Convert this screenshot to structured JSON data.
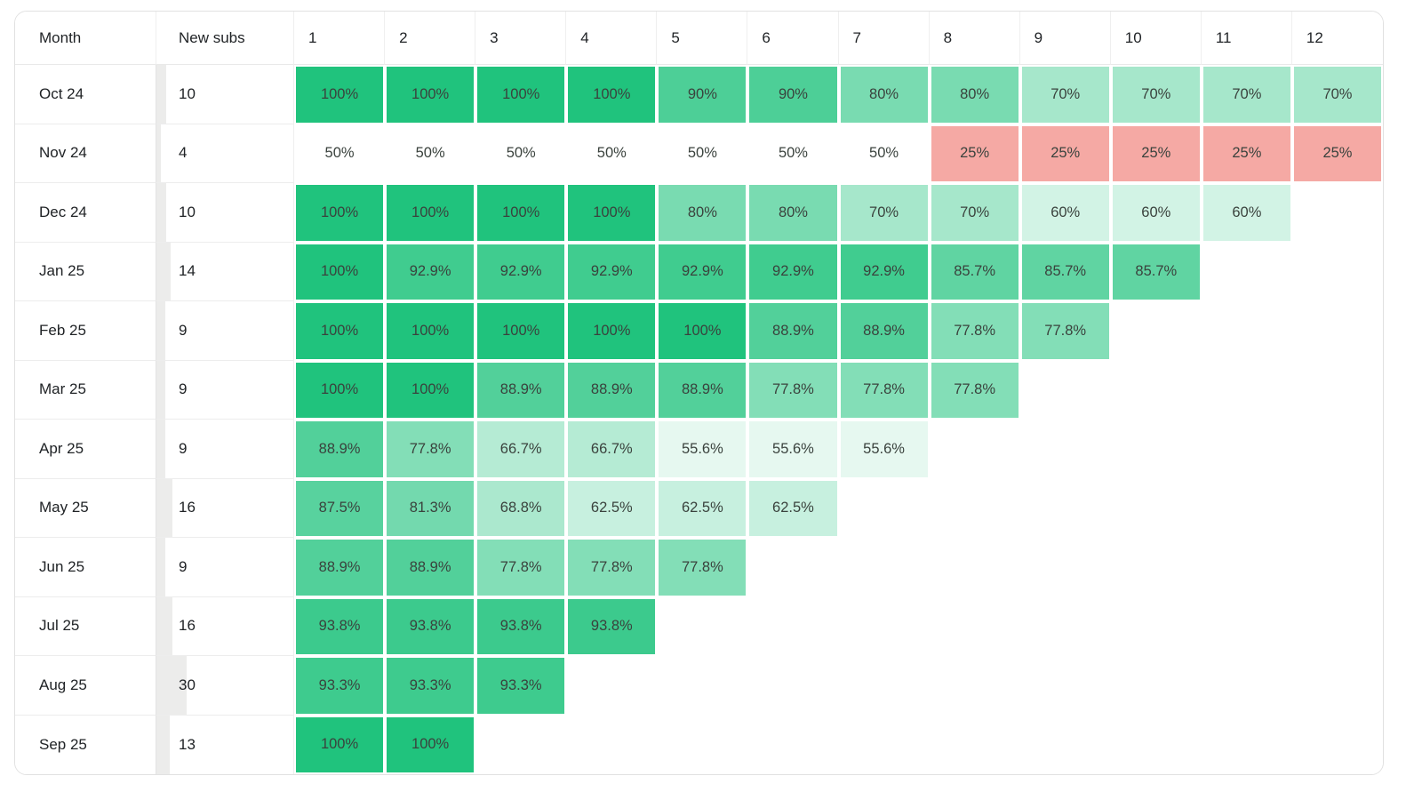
{
  "chart_data": {
    "type": "heatmap",
    "columns": [
      "Month",
      "New subs",
      "1",
      "2",
      "3",
      "4",
      "5",
      "6",
      "7",
      "8",
      "9",
      "10",
      "11",
      "12"
    ],
    "rows": [
      {
        "month": "Oct 24",
        "new_subs": 10,
        "retention": [
          "100%",
          "100%",
          "100%",
          "100%",
          "90%",
          "90%",
          "80%",
          "80%",
          "70%",
          "70%",
          "70%",
          "70%"
        ]
      },
      {
        "month": "Nov 24",
        "new_subs": 4,
        "retention": [
          "50%",
          "50%",
          "50%",
          "50%",
          "50%",
          "50%",
          "50%",
          "25%",
          "25%",
          "25%",
          "25%",
          "25%"
        ]
      },
      {
        "month": "Dec 24",
        "new_subs": 10,
        "retention": [
          "100%",
          "100%",
          "100%",
          "100%",
          "80%",
          "80%",
          "70%",
          "70%",
          "60%",
          "60%",
          "60%"
        ]
      },
      {
        "month": "Jan 25",
        "new_subs": 14,
        "retention": [
          "100%",
          "92.9%",
          "92.9%",
          "92.9%",
          "92.9%",
          "92.9%",
          "92.9%",
          "85.7%",
          "85.7%",
          "85.7%"
        ]
      },
      {
        "month": "Feb 25",
        "new_subs": 9,
        "retention": [
          "100%",
          "100%",
          "100%",
          "100%",
          "100%",
          "88.9%",
          "88.9%",
          "77.8%",
          "77.8%"
        ]
      },
      {
        "month": "Mar 25",
        "new_subs": 9,
        "retention": [
          "100%",
          "100%",
          "88.9%",
          "88.9%",
          "88.9%",
          "77.8%",
          "77.8%",
          "77.8%"
        ]
      },
      {
        "month": "Apr 25",
        "new_subs": 9,
        "retention": [
          "88.9%",
          "77.8%",
          "66.7%",
          "66.7%",
          "55.6%",
          "55.6%",
          "55.6%"
        ]
      },
      {
        "month": "May 25",
        "new_subs": 16,
        "retention": [
          "87.5%",
          "81.3%",
          "68.8%",
          "62.5%",
          "62.5%",
          "62.5%"
        ]
      },
      {
        "month": "Jun 25",
        "new_subs": 9,
        "retention": [
          "88.9%",
          "88.9%",
          "77.8%",
          "77.8%",
          "77.8%"
        ]
      },
      {
        "month": "Jul 25",
        "new_subs": 16,
        "retention": [
          "93.8%",
          "93.8%",
          "93.8%",
          "93.8%"
        ]
      },
      {
        "month": "Aug 25",
        "new_subs": 30,
        "retention": [
          "93.3%",
          "93.3%",
          "93.3%"
        ]
      },
      {
        "month": "Sep 25",
        "new_subs": 13,
        "retention": [
          "100%",
          "100%"
        ]
      }
    ],
    "color_scale": {
      "type": "diverging",
      "low_value": 0,
      "mid_value": 50,
      "high_value": 100,
      "low_color": "#eb5249",
      "mid_color": "#ffffff",
      "high_color": "#20c37d"
    },
    "new_subs_bar_color": "#ececeb",
    "legend": "none",
    "grid": "off"
  }
}
